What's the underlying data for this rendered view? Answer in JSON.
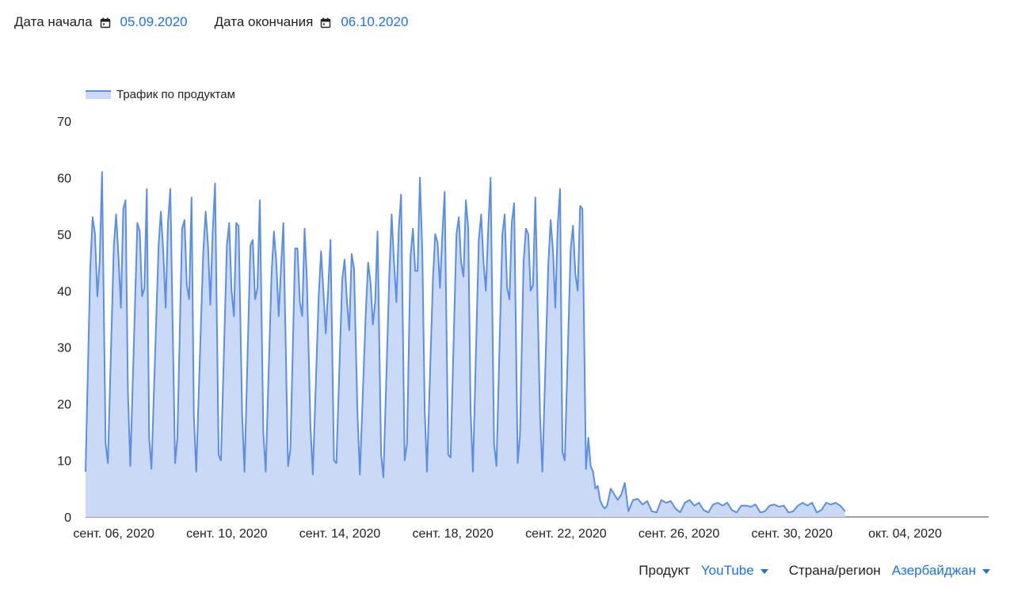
{
  "date_range": {
    "start_label": "Дата начала",
    "start_value": "05.09.2020",
    "end_label": "Дата окончания",
    "end_value": "06.10.2020"
  },
  "filters": {
    "product_label": "Продукт",
    "product_value": "YouTube",
    "region_label": "Страна/регион",
    "region_value": "Азербайджан"
  },
  "colors": {
    "accent": "#1a73e8",
    "line": "#5b8ee6",
    "fill": "#c9d9f6"
  },
  "chart_data": {
    "type": "area",
    "title": "",
    "xlabel": "",
    "ylabel": "",
    "ylim": [
      0,
      70
    ],
    "yticks": [
      0,
      10,
      20,
      30,
      40,
      50,
      60,
      70
    ],
    "grid": false,
    "legend_position": "top-left",
    "x_start": "2020-09-05T00:00",
    "x_end": "2020-10-06T23:00",
    "x_ticks": [
      {
        "label": "сент. 06, 2020",
        "date": "2020-09-06"
      },
      {
        "label": "сент. 10, 2020",
        "date": "2020-09-10"
      },
      {
        "label": "сент. 14, 2020",
        "date": "2020-09-14"
      },
      {
        "label": "сент. 18, 2020",
        "date": "2020-09-18"
      },
      {
        "label": "сент. 22, 2020",
        "date": "2020-09-22"
      },
      {
        "label": "сент. 26, 2020",
        "date": "2020-09-26"
      },
      {
        "label": "сент. 30, 2020",
        "date": "2020-09-30"
      },
      {
        "label": "окт. 04, 2020",
        "date": "2020-10-04"
      }
    ],
    "series": [
      {
        "name": "Трафик по продуктам",
        "points": [
          [
            "2020-09-05T00:00",
            8
          ],
          [
            "2020-09-05T04:00",
            44
          ],
          [
            "2020-09-05T06:00",
            53
          ],
          [
            "2020-09-05T08:00",
            50
          ],
          [
            "2020-09-05T10:00",
            39
          ],
          [
            "2020-09-05T12:00",
            45
          ],
          [
            "2020-09-05T14:00",
            61
          ],
          [
            "2020-09-05T17:00",
            13
          ],
          [
            "2020-09-05T19:00",
            9.5
          ],
          [
            "2020-09-06T00:00",
            48
          ],
          [
            "2020-09-06T02:00",
            53.5
          ],
          [
            "2020-09-06T04:00",
            46
          ],
          [
            "2020-09-06T06:00",
            37
          ],
          [
            "2020-09-06T08:00",
            54.5
          ],
          [
            "2020-09-06T10:00",
            56
          ],
          [
            "2020-09-06T12:00",
            22
          ],
          [
            "2020-09-06T14:00",
            9
          ],
          [
            "2020-09-06T20:00",
            52
          ],
          [
            "2020-09-06T22:00",
            50.5
          ],
          [
            "2020-09-07T00:00",
            39
          ],
          [
            "2020-09-07T02:00",
            40.5
          ],
          [
            "2020-09-07T04:00",
            58
          ],
          [
            "2020-09-07T06:00",
            14
          ],
          [
            "2020-09-07T08:00",
            8.5
          ],
          [
            "2020-09-07T14:00",
            48
          ],
          [
            "2020-09-07T16:00",
            54
          ],
          [
            "2020-09-07T18:00",
            47
          ],
          [
            "2020-09-07T20:00",
            37
          ],
          [
            "2020-09-07T22:00",
            52
          ],
          [
            "2020-09-08T00:00",
            58
          ],
          [
            "2020-09-08T04:00",
            9.5
          ],
          [
            "2020-09-08T06:00",
            14
          ],
          [
            "2020-09-08T10:00",
            51
          ],
          [
            "2020-09-08T12:00",
            52.5
          ],
          [
            "2020-09-08T14:00",
            41
          ],
          [
            "2020-09-08T16:00",
            38.5
          ],
          [
            "2020-09-08T18:00",
            56.5
          ],
          [
            "2020-09-08T20:00",
            18
          ],
          [
            "2020-09-08T22:00",
            8
          ],
          [
            "2020-09-09T04:00",
            47
          ],
          [
            "2020-09-09T06:00",
            54
          ],
          [
            "2020-09-09T08:00",
            48
          ],
          [
            "2020-09-09T10:00",
            37.5
          ],
          [
            "2020-09-09T12:00",
            50.5
          ],
          [
            "2020-09-09T14:00",
            59
          ],
          [
            "2020-09-09T17:00",
            11
          ],
          [
            "2020-09-09T19:00",
            10
          ],
          [
            "2020-09-10T00:00",
            48
          ],
          [
            "2020-09-10T02:00",
            52
          ],
          [
            "2020-09-10T04:00",
            40
          ],
          [
            "2020-09-10T06:00",
            35.5
          ],
          [
            "2020-09-10T08:00",
            52
          ],
          [
            "2020-09-10T10:00",
            51.5
          ],
          [
            "2020-09-10T13:00",
            18
          ],
          [
            "2020-09-10T15:00",
            8
          ],
          [
            "2020-09-10T20:00",
            48
          ],
          [
            "2020-09-10T22:00",
            49
          ],
          [
            "2020-09-11T00:00",
            38.5
          ],
          [
            "2020-09-11T02:00",
            40.5
          ],
          [
            "2020-09-11T04:00",
            56
          ],
          [
            "2020-09-11T07:00",
            15
          ],
          [
            "2020-09-11T09:00",
            8
          ],
          [
            "2020-09-11T14:00",
            43
          ],
          [
            "2020-09-11T16:00",
            50.5
          ],
          [
            "2020-09-11T18:00",
            45
          ],
          [
            "2020-09-11T20:00",
            35.5
          ],
          [
            "2020-09-11T22:00",
            44
          ],
          [
            "2020-09-12T00:00",
            52
          ],
          [
            "2020-09-12T04:00",
            9
          ],
          [
            "2020-09-12T06:00",
            12
          ],
          [
            "2020-09-12T10:00",
            47.5
          ],
          [
            "2020-09-12T12:00",
            47.5
          ],
          [
            "2020-09-12T14:00",
            38
          ],
          [
            "2020-09-12T16:00",
            35.5
          ],
          [
            "2020-09-12T18:00",
            51
          ],
          [
            "2020-09-12T20:00",
            42
          ],
          [
            "2020-09-12T23:00",
            16
          ],
          [
            "2020-09-13T01:00",
            7.5
          ],
          [
            "2020-09-13T06:00",
            39
          ],
          [
            "2020-09-13T08:00",
            47
          ],
          [
            "2020-09-13T10:00",
            40
          ],
          [
            "2020-09-13T12:00",
            32.5
          ],
          [
            "2020-09-13T14:00",
            40
          ],
          [
            "2020-09-13T16:00",
            49
          ],
          [
            "2020-09-13T19:00",
            10
          ],
          [
            "2020-09-13T21:00",
            9.5
          ],
          [
            "2020-09-14T02:00",
            42
          ],
          [
            "2020-09-14T04:00",
            45.5
          ],
          [
            "2020-09-14T06:00",
            38
          ],
          [
            "2020-09-14T08:00",
            33
          ],
          [
            "2020-09-14T10:00",
            46.5
          ],
          [
            "2020-09-14T12:00",
            44
          ],
          [
            "2020-09-14T15:00",
            18
          ],
          [
            "2020-09-14T17:00",
            7.5
          ],
          [
            "2020-09-14T22:00",
            36
          ],
          [
            "2020-09-15T00:00",
            45
          ],
          [
            "2020-09-15T02:00",
            41.5
          ],
          [
            "2020-09-15T04:00",
            34
          ],
          [
            "2020-09-15T06:00",
            38
          ],
          [
            "2020-09-15T08:00",
            50.5
          ],
          [
            "2020-09-15T11:00",
            11
          ],
          [
            "2020-09-15T13:00",
            7
          ],
          [
            "2020-09-15T18:00",
            43
          ],
          [
            "2020-09-15T20:00",
            53.5
          ],
          [
            "2020-09-15T22:00",
            45
          ],
          [
            "2020-09-16T00:00",
            38
          ],
          [
            "2020-09-16T02:00",
            51
          ],
          [
            "2020-09-16T04:00",
            57
          ],
          [
            "2020-09-16T07:00",
            10
          ],
          [
            "2020-09-16T09:00",
            13
          ],
          [
            "2020-09-16T12:00",
            46
          ],
          [
            "2020-09-16T14:00",
            51
          ],
          [
            "2020-09-16T16:00",
            43.5
          ],
          [
            "2020-09-16T18:00",
            43.5
          ],
          [
            "2020-09-16T20:00",
            60
          ],
          [
            "2020-09-16T22:00",
            47
          ],
          [
            "2020-09-17T00:00",
            19
          ],
          [
            "2020-09-17T02:00",
            8
          ],
          [
            "2020-09-17T07:00",
            42
          ],
          [
            "2020-09-17T09:00",
            50
          ],
          [
            "2020-09-17T11:00",
            48.5
          ],
          [
            "2020-09-17T13:00",
            40.5
          ],
          [
            "2020-09-17T15:00",
            50
          ],
          [
            "2020-09-17T17:00",
            57.5
          ],
          [
            "2020-09-17T20:00",
            11
          ],
          [
            "2020-09-17T22:00",
            10.5
          ],
          [
            "2020-09-18T03:00",
            50
          ],
          [
            "2020-09-18T05:00",
            53
          ],
          [
            "2020-09-18T07:00",
            45
          ],
          [
            "2020-09-18T09:00",
            42.5
          ],
          [
            "2020-09-18T11:00",
            56
          ],
          [
            "2020-09-18T13:00",
            51
          ],
          [
            "2020-09-18T15:00",
            19
          ],
          [
            "2020-09-18T17:00",
            8
          ],
          [
            "2020-09-18T22:00",
            49
          ],
          [
            "2020-09-19T00:00",
            53.5
          ],
          [
            "2020-09-19T02:00",
            45
          ],
          [
            "2020-09-19T04:00",
            40
          ],
          [
            "2020-09-19T06:00",
            51
          ],
          [
            "2020-09-19T08:00",
            60
          ],
          [
            "2020-09-19T11:00",
            13
          ],
          [
            "2020-09-19T13:00",
            9
          ],
          [
            "2020-09-19T18:00",
            50
          ],
          [
            "2020-09-19T20:00",
            53.5
          ],
          [
            "2020-09-19T22:00",
            40.5
          ],
          [
            "2020-09-20T00:00",
            38.5
          ],
          [
            "2020-09-20T02:00",
            52
          ],
          [
            "2020-09-20T04:00",
            55.5
          ],
          [
            "2020-09-20T07:00",
            9.5
          ],
          [
            "2020-09-20T09:00",
            14.5
          ],
          [
            "2020-09-20T12:00",
            45
          ],
          [
            "2020-09-20T14:00",
            51
          ],
          [
            "2020-09-20T16:00",
            50
          ],
          [
            "2020-09-20T18:00",
            40
          ],
          [
            "2020-09-20T20:00",
            41
          ],
          [
            "2020-09-20T22:00",
            56.5
          ],
          [
            "2020-09-21T02:00",
            18
          ],
          [
            "2020-09-21T04:00",
            8
          ],
          [
            "2020-09-21T09:00",
            44.5
          ],
          [
            "2020-09-21T11:00",
            52.5
          ],
          [
            "2020-09-21T13:00",
            47
          ],
          [
            "2020-09-21T15:00",
            37
          ],
          [
            "2020-09-21T17:00",
            51.5
          ],
          [
            "2020-09-21T19:00",
            58
          ],
          [
            "2020-09-21T21:00",
            11.5
          ],
          [
            "2020-09-21T23:00",
            10
          ],
          [
            "2020-09-22T04:00",
            47.5
          ],
          [
            "2020-09-22T06:00",
            51.5
          ],
          [
            "2020-09-22T08:00",
            43
          ],
          [
            "2020-09-22T10:00",
            40
          ],
          [
            "2020-09-22T12:00",
            55
          ],
          [
            "2020-09-22T14:00",
            54.5
          ],
          [
            "2020-09-22T17:00",
            8.5
          ],
          [
            "2020-09-22T19:00",
            14
          ],
          [
            "2020-09-22T21:00",
            9
          ],
          [
            "2020-09-22T23:00",
            8
          ],
          [
            "2020-09-23T01:00",
            5
          ],
          [
            "2020-09-23T03:00",
            5.5
          ],
          [
            "2020-09-23T05:00",
            3
          ],
          [
            "2020-09-23T07:00",
            2
          ],
          [
            "2020-09-23T09:00",
            1.5
          ],
          [
            "2020-09-23T11:00",
            2
          ],
          [
            "2020-09-23T14:00",
            5
          ],
          [
            "2020-09-23T17:00",
            4
          ],
          [
            "2020-09-23T20:00",
            3
          ],
          [
            "2020-09-23T23:00",
            4
          ],
          [
            "2020-09-24T02:00",
            6
          ],
          [
            "2020-09-24T05:00",
            1
          ],
          [
            "2020-09-24T09:00",
            3
          ],
          [
            "2020-09-24T13:00",
            3.2
          ],
          [
            "2020-09-24T17:00",
            2.2
          ],
          [
            "2020-09-24T21:00",
            2.8
          ],
          [
            "2020-09-25T01:00",
            1
          ],
          [
            "2020-09-25T05:00",
            0.8
          ],
          [
            "2020-09-25T09:00",
            3
          ],
          [
            "2020-09-25T13:00",
            2.5
          ],
          [
            "2020-09-25T17:00",
            2.8
          ],
          [
            "2020-09-25T21:00",
            1.5
          ],
          [
            "2020-09-26T01:00",
            0.8
          ],
          [
            "2020-09-26T05:00",
            2.5
          ],
          [
            "2020-09-26T09:00",
            3
          ],
          [
            "2020-09-26T13:00",
            2
          ],
          [
            "2020-09-26T17:00",
            2.5
          ],
          [
            "2020-09-26T21:00",
            1.2
          ],
          [
            "2020-09-27T01:00",
            0.8
          ],
          [
            "2020-09-27T05:00",
            2.2
          ],
          [
            "2020-09-27T09:00",
            2.5
          ],
          [
            "2020-09-27T13:00",
            2
          ],
          [
            "2020-09-27T17:00",
            2.5
          ],
          [
            "2020-09-27T21:00",
            1.2
          ],
          [
            "2020-09-28T01:00",
            0.8
          ],
          [
            "2020-09-28T05:00",
            2
          ],
          [
            "2020-09-28T09:00",
            2
          ],
          [
            "2020-09-28T13:00",
            1.8
          ],
          [
            "2020-09-28T17:00",
            2.2
          ],
          [
            "2020-09-28T21:00",
            0.8
          ],
          [
            "2020-09-29T01:00",
            1
          ],
          [
            "2020-09-29T05:00",
            2
          ],
          [
            "2020-09-29T09:00",
            2.2
          ],
          [
            "2020-09-29T13:00",
            1.8
          ],
          [
            "2020-09-29T17:00",
            2
          ],
          [
            "2020-09-29T21:00",
            0.8
          ],
          [
            "2020-09-30T01:00",
            1
          ],
          [
            "2020-09-30T05:00",
            2
          ],
          [
            "2020-09-30T09:00",
            2.5
          ],
          [
            "2020-09-30T13:00",
            2
          ],
          [
            "2020-09-30T17:00",
            2.5
          ],
          [
            "2020-09-30T21:00",
            0.8
          ],
          [
            "2020-10-01T01:00",
            1.2
          ],
          [
            "2020-10-01T05:00",
            2.5
          ],
          [
            "2020-10-01T09:00",
            2.2
          ],
          [
            "2020-10-01T13:00",
            2.5
          ],
          [
            "2020-10-01T17:00",
            2
          ],
          [
            "2020-10-01T21:00",
            1
          ]
        ]
      }
    ]
  }
}
